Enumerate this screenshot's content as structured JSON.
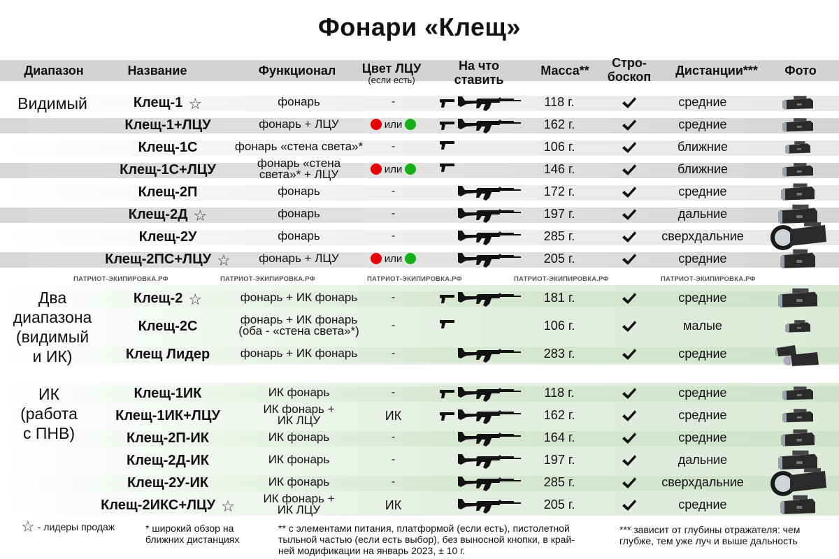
{
  "title": "Фонари «Клещ»",
  "header": {
    "range": "Диапазон",
    "name": "Название",
    "function": "Функционал",
    "color": "Цвет ЛЦУ",
    "color_sub": "(если есть)",
    "mount_1": "На что",
    "mount_2": "ставить",
    "mass": "Масса**",
    "strobe_1": "Стро-",
    "strobe_2": "боскоп",
    "distance": "Дистанции***",
    "photo": "Фото"
  },
  "groups": {
    "visible": "Видимый",
    "dual_1": "Два",
    "dual_2": "диапазона",
    "dual_3": "(видимый",
    "dual_4": "и ИК)",
    "ir_1": "ИК",
    "ir_2": "(работа",
    "ir_3": "с ПНВ)"
  },
  "ili": "или",
  "watermark": "ПАТРИОТ-ЭКИПИРОВКА.РФ",
  "rows": [
    {
      "name": "Клещ-1",
      "leader": true,
      "func": "фонарь",
      "func2": "",
      "color": "-",
      "mount": "both",
      "mass": "118 г.",
      "distance": "средние"
    },
    {
      "name": "Клещ-1+ЛЦУ",
      "leader": false,
      "func": "фонарь + ЛЦУ",
      "func2": "",
      "color": "dots",
      "mount": "both",
      "mass": "162 г.",
      "distance": "средние"
    },
    {
      "name": "Клещ-1С",
      "leader": false,
      "func": "фонарь «стена света»*",
      "func2": "",
      "color": "-",
      "mount": "pistol",
      "mass": "106 г.",
      "distance": "ближние"
    },
    {
      "name": "Клещ-1С+ЛЦУ",
      "leader": false,
      "func": "фонарь «стена",
      "func2": "света»* + ЛЦУ",
      "color": "dots",
      "mount": "pistol",
      "mass": "146 г.",
      "distance": "ближние"
    },
    {
      "name": "Клещ-2П",
      "leader": false,
      "func": "фонарь",
      "func2": "",
      "color": "-",
      "mount": "rifle",
      "mass": "172 г.",
      "distance": "средние"
    },
    {
      "name": "Клещ-2Д",
      "leader": true,
      "func": "фонарь",
      "func2": "",
      "color": "-",
      "mount": "rifle",
      "mass": "197 г.",
      "distance": "дальние"
    },
    {
      "name": "Клещ-2У",
      "leader": false,
      "func": "фонарь",
      "func2": "",
      "color": "-",
      "mount": "rifle",
      "mass": "285 г.",
      "distance": "сверхдальние"
    },
    {
      "name": "Клещ-2ПС+ЛЦУ",
      "leader": true,
      "func": "фонарь + ЛЦУ",
      "func2": "",
      "color": "dots",
      "mount": "rifle",
      "mass": "205 г.",
      "distance": "средние"
    },
    {
      "name": "Клещ-2",
      "leader": true,
      "func": "фонарь + ИК фонарь",
      "func2": "",
      "color": "-",
      "mount": "both",
      "mass": "181 г.",
      "distance": "средние"
    },
    {
      "name": "Клещ-2С",
      "leader": false,
      "func": "фонарь + ИК фонарь",
      "func2": "(оба - «стена света»*)",
      "color": "-",
      "mount": "pistol",
      "mass": "106 г.",
      "distance": "малые"
    },
    {
      "name": "Клещ Лидер",
      "leader": false,
      "func": "фонарь + ИК фонарь",
      "func2": "",
      "color": "-",
      "mount": "rifle",
      "mass": "283 г.",
      "distance": "средние"
    },
    {
      "name": "Клещ-1ИК",
      "leader": false,
      "func": "ИК фонарь",
      "func2": "",
      "color": "-",
      "mount": "both",
      "mass": "118 г.",
      "distance": "средние"
    },
    {
      "name": "Клещ-1ИК+ЛЦУ",
      "leader": false,
      "func": "ИК фонарь +",
      "func2": "ИК ЛЦУ",
      "color": "ИК",
      "mount": "both",
      "mass": "162 г.",
      "distance": "средние"
    },
    {
      "name": "Клещ-2П-ИК",
      "leader": false,
      "func": "ИК фонарь",
      "func2": "",
      "color": "-",
      "mount": "rifle",
      "mass": "164 г.",
      "distance": "средние"
    },
    {
      "name": "Клещ-2Д-ИК",
      "leader": false,
      "func": "ИК фонарь",
      "func2": "",
      "color": "-",
      "mount": "rifle",
      "mass": "197 г.",
      "distance": "дальние"
    },
    {
      "name": "Клещ-2У-ИК",
      "leader": false,
      "func": "ИК фонарь",
      "func2": "",
      "color": "-",
      "mount": "rifle",
      "mass": "285 г.",
      "distance": "сверхдальние"
    },
    {
      "name": "Клещ-2ИКС+ЛЦУ",
      "leader": true,
      "func": "ИК фонарь +",
      "func2": "ИК ЛЦУ",
      "color": "ИК",
      "mount": "rifle",
      "mass": "205 г.",
      "distance": "средние"
    }
  ],
  "footnotes": {
    "leader": "- лидеры продаж",
    "n1_1": "* широкий обзор на",
    "n1_2": "ближних дистанциях",
    "n2_1": "** с элементами питания, платформой (если есть), пистолетной",
    "n2_2": "тыльной частью (если есть выбор), без выносной кнопки, в край-",
    "n2_3": "ней модификации на январь 2023, ± 10 г.",
    "n3_1": "*** зависит от глубины отражателя: чем",
    "n3_2": "глубже, тем уже луч и выше дальность"
  },
  "colors": {
    "stripe": "#e4e4e4",
    "header": "#d3d3d3",
    "green_band": "#e6f1e4",
    "ldu_red": "#e60000",
    "ldu_green": "#13b013"
  }
}
